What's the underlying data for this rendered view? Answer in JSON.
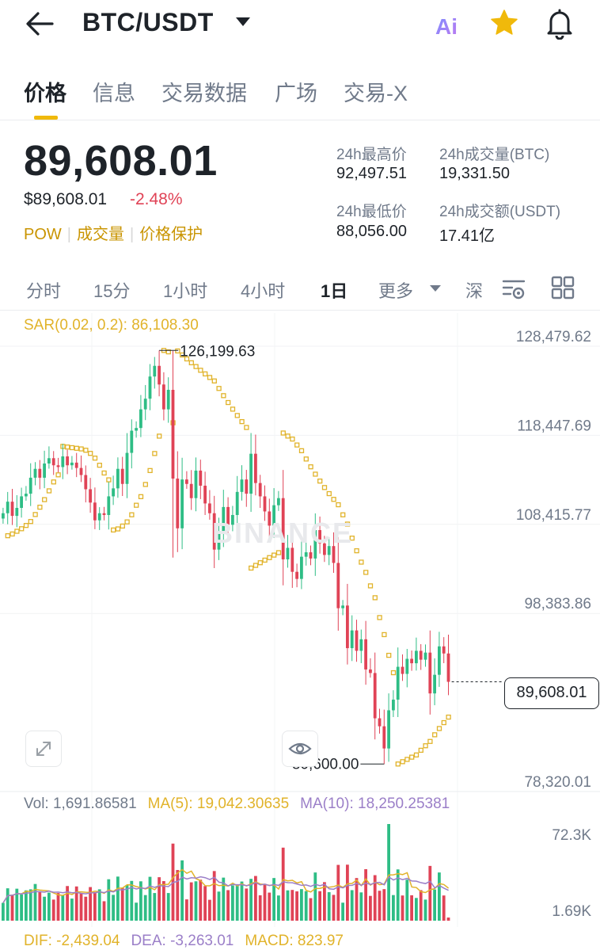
{
  "header": {
    "title": "BTC/USDT",
    "ai_label": "Ai"
  },
  "tabs": [
    {
      "label": "价格"
    },
    {
      "label": "信息"
    },
    {
      "label": "交易数据"
    },
    {
      "label": "广场"
    },
    {
      "label": "交易-X"
    }
  ],
  "ticker": {
    "price": "89,608.01",
    "price_usd": "$89,608.01",
    "change": "-2.48%",
    "tags": [
      "POW",
      "成交量",
      "价格保护"
    ],
    "stats": {
      "high_label": "24h最高价",
      "high_value": "92,497.51",
      "vol_btc_label": "24h成交量(BTC)",
      "vol_btc_value": "19,331.50",
      "low_label": "24h最低价",
      "low_value": "88,056.00",
      "vol_usdt_label": "24h成交额(USDT)",
      "vol_usdt_value": "17.41亿"
    }
  },
  "intervals": {
    "items": [
      "分时",
      "15分",
      "1小时",
      "4小时",
      "1日",
      "更多",
      "深"
    ],
    "active": "1日"
  },
  "colors": {
    "up": "#2ebd85",
    "down": "#e04356",
    "sar": "#e1b32a",
    "accent": "#f0b90b",
    "ma10": "#9b7fc8"
  },
  "chart_legends": {
    "sar": "SAR(0.02, 0.2): 86,108.30",
    "vol": "Vol: 1,691.86581",
    "ma5": "MA(5): 19,042.30635",
    "ma10": "MA(10): 18,250.25381",
    "dif": "DIF: -2,439.04",
    "dea": "DEA: -3,263.01",
    "macd": "MACD: 823.97",
    "last_price": "89,608.01",
    "watermark": "BINANCE"
  },
  "chart_data": {
    "type": "candlestick",
    "price_axis": {
      "ticks": [
        "128,479.62",
        "118,447.69",
        "108,415.77",
        "98,383.86",
        "78,320.01"
      ],
      "ylim": [
        78320.01,
        128479.62
      ]
    },
    "annotations": {
      "high": "126,199.63",
      "low": "80,600.00"
    },
    "volume_axis": {
      "ticks": [
        "72.3K",
        "1.69K"
      ]
    },
    "closes": [
      108600,
      109900,
      108300,
      109200,
      110500,
      110800,
      112600,
      113600,
      112600,
      114200,
      114800,
      114000,
      113800,
      115000,
      114000,
      114300,
      113700,
      112900,
      111300,
      109800,
      107800,
      108600,
      108400,
      110500,
      111400,
      113600,
      111900,
      115400,
      117900,
      118200,
      120300,
      121500,
      124000,
      125200,
      123100,
      120300,
      122500,
      112500,
      106900,
      112400,
      111900,
      110300,
      113400,
      111700,
      109700,
      108600,
      104500,
      106600,
      109300,
      107300,
      108400,
      111000,
      112400,
      110800,
      115300,
      112000,
      110500,
      108800,
      107200,
      109500,
      110300,
      103400,
      104700,
      102000,
      101200,
      103700,
      104200,
      103500,
      106700,
      105200,
      103900,
      104900,
      103000,
      97900,
      98200,
      93400,
      95400,
      93100,
      94400,
      91000,
      90600,
      85500,
      84600,
      82100,
      86400,
      87600,
      91300,
      90500,
      92200,
      91700,
      93100,
      92100,
      92900,
      88300,
      90400,
      93600,
      92800,
      89608
    ],
    "sar_start": 106000,
    "volume_max": 72300,
    "volume_min": 1690
  }
}
